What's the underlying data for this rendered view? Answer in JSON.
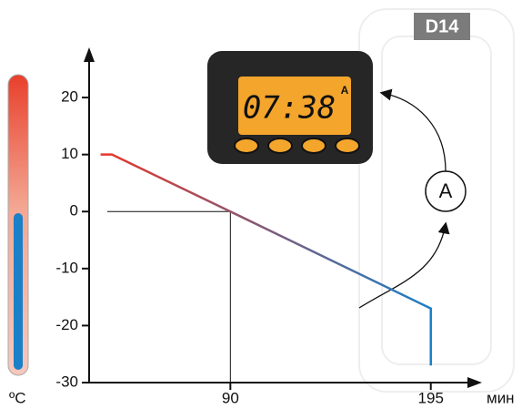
{
  "chart_data": {
    "type": "line",
    "x": [
      22,
      28,
      90,
      195,
      195
    ],
    "values": [
      10,
      10,
      0,
      -17,
      -27
    ],
    "gradient": [
      "#e8362a",
      "#1a80c8"
    ],
    "xlim": [
      16,
      218
    ],
    "xticks": [
      90,
      195
    ],
    "ylim": [
      -30,
      28
    ],
    "yticks": [
      -30,
      -20,
      -10,
      0,
      10,
      20
    ],
    "y_label": "ºC",
    "x_label": "мин"
  },
  "badge": "D14",
  "timer": {
    "display": "07:38",
    "mode": "A"
  },
  "callout": "A"
}
